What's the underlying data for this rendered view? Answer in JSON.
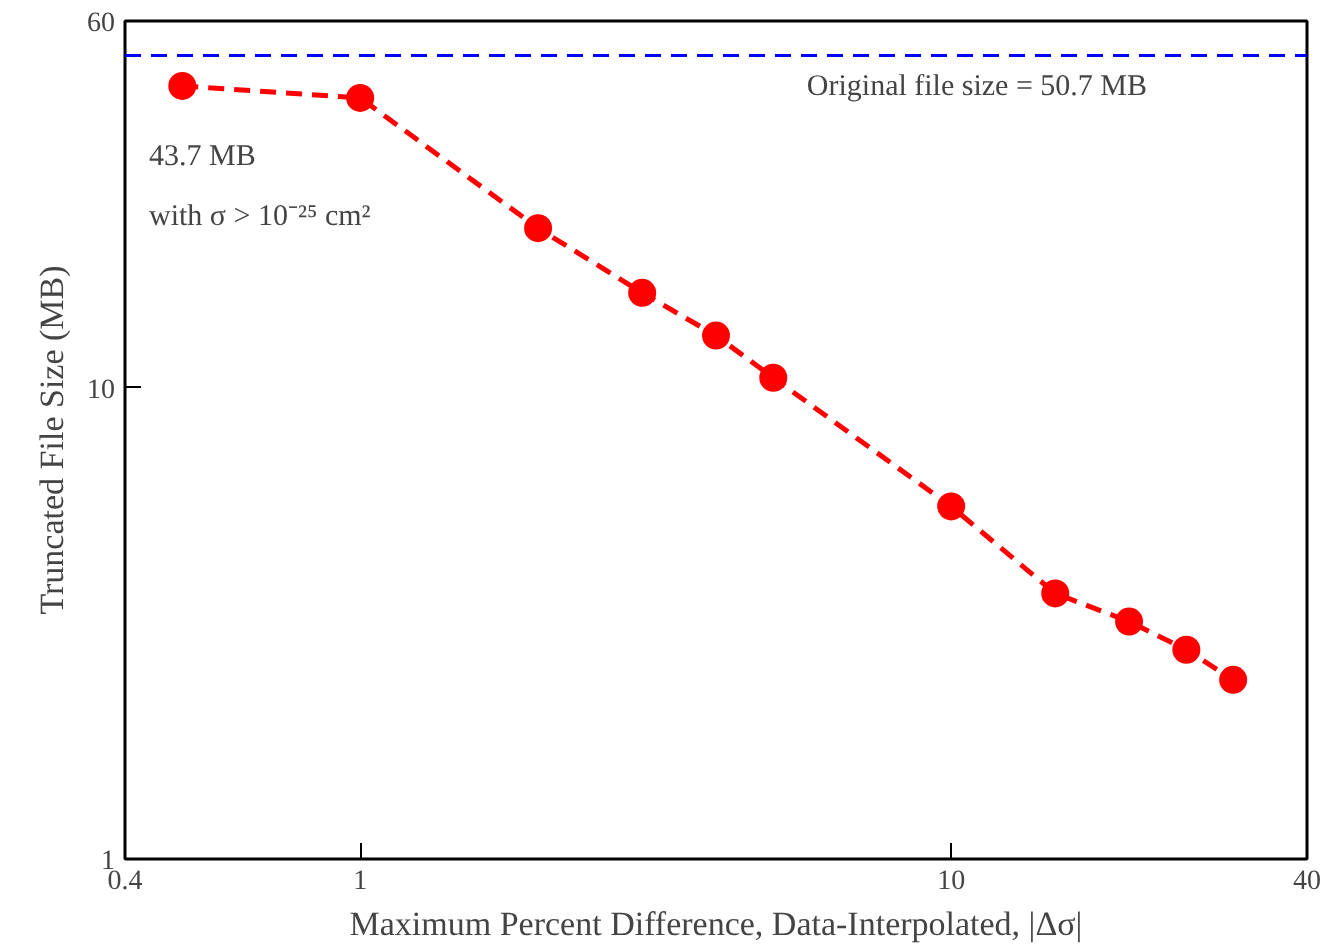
{
  "chart_data": {
    "type": "line",
    "xlabel": "Maximum Percent Difference, Data-Interpolated, |Δσ|",
    "ylabel": "Truncated File Size (MB)",
    "x": [
      0.5,
      1,
      2,
      3,
      4,
      5,
      10,
      15,
      20,
      25,
      30
    ],
    "series": [
      {
        "color": "#ff0000",
        "values": [
          43.7,
          41.2,
          21.8,
          15.9,
          12.9,
          10.5,
          5.6,
          3.66,
          3.19,
          2.78,
          2.4
        ]
      }
    ],
    "log": "xy",
    "xlim": [
      0.4,
      40
    ],
    "ylim": [
      1,
      60
    ],
    "xticks": [
      0.4,
      1,
      10,
      40
    ],
    "yticks": [
      1,
      10,
      60
    ],
    "marker": "circle",
    "line_style": "dashed",
    "grid": false,
    "ref_lines": [
      {
        "axis": "y",
        "value": 50.7,
        "label": "Original file size = 50.7 MB",
        "color": "#0000ff",
        "line_style": "dashed"
      }
    ],
    "annotations": [
      "43.7 MB",
      "with σ > 10⁻²⁵ cm²"
    ]
  }
}
